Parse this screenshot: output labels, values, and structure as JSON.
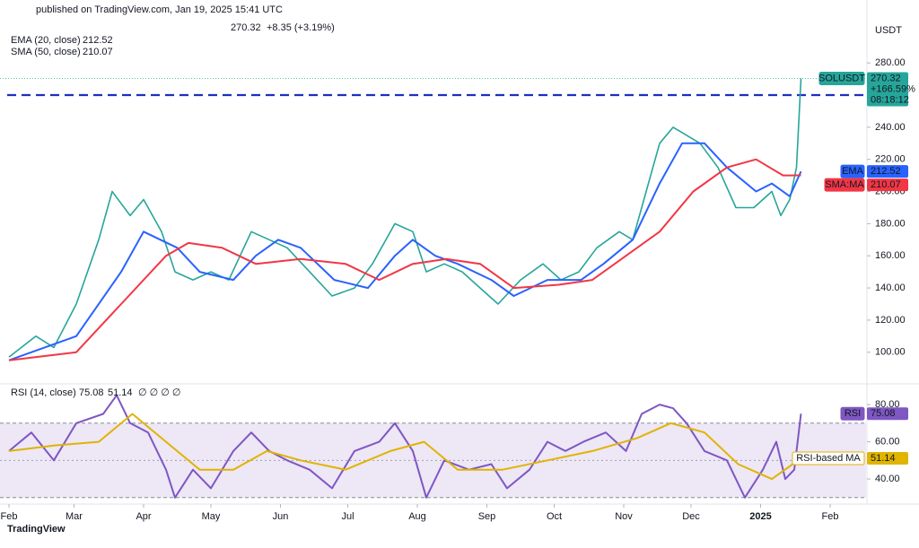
{
  "header": {
    "published": "published on TradingView.com, Jan 19, 2025 15:41 UTC",
    "change": "+8.35 (+3.19%)",
    "currency": "USDT",
    "pct": "+166.59%",
    "countdown": "08:18:12",
    "brand": "TradingView"
  },
  "chart_data": [
    {
      "type": "line",
      "indicators": [
        "EMA (20, close)",
        "SMA (50, close)"
      ],
      "xlim": [
        -4,
        382
      ],
      "xticks": [
        {
          "value": 0,
          "label": "Feb"
        },
        {
          "value": 29,
          "label": "Mar"
        },
        {
          "value": 60,
          "label": "Apr"
        },
        {
          "value": 90,
          "label": "May"
        },
        {
          "value": 121,
          "label": "Jun"
        },
        {
          "value": 151,
          "label": "Jul"
        },
        {
          "value": 182,
          "label": "Aug"
        },
        {
          "value": 213,
          "label": "Sep"
        },
        {
          "value": 243,
          "label": "Oct"
        },
        {
          "value": 274,
          "label": "Nov"
        },
        {
          "value": 304,
          "label": "Dec"
        },
        {
          "value": 335,
          "label": "2025"
        },
        {
          "value": 366,
          "label": "Feb"
        }
      ],
      "ylim": [
        82,
        308
      ],
      "yticks": [
        {
          "value": 100,
          "label": "100.00"
        },
        {
          "value": 120,
          "label": "120.00"
        },
        {
          "value": 140,
          "label": "140.00"
        },
        {
          "value": 160,
          "label": "160.00"
        },
        {
          "value": 180,
          "label": "180.00"
        },
        {
          "value": 200,
          "label": "200.00"
        },
        {
          "value": 220,
          "label": "220.00"
        },
        {
          "value": 240,
          "label": "240.00"
        },
        {
          "value": 260,
          "label": "260.00"
        },
        {
          "value": 280,
          "label": "280.00"
        }
      ],
      "level": {
        "value": 260,
        "label": "260.00",
        "color": "#1e2fbf"
      },
      "grid": false,
      "series": [
        {
          "name": "SOLUSDT",
          "color": "#26a69a",
          "x": [
            0,
            12,
            20,
            30,
            40,
            46,
            54,
            60,
            68,
            74,
            82,
            90,
            98,
            108,
            116,
            124,
            134,
            144,
            154,
            162,
            172,
            180,
            186,
            194,
            202,
            210,
            218,
            228,
            238,
            246,
            254,
            262,
            272,
            278,
            284,
            290,
            296,
            302,
            308,
            316,
            324,
            332,
            340,
            344,
            348,
            351,
            353
          ],
          "values": [
            97,
            110,
            103,
            130,
            170,
            200,
            185,
            195,
            175,
            150,
            145,
            150,
            145,
            175,
            170,
            165,
            150,
            135,
            140,
            155,
            180,
            175,
            150,
            155,
            150,
            140,
            130,
            145,
            155,
            145,
            150,
            165,
            175,
            170,
            200,
            230,
            240,
            235,
            230,
            215,
            190,
            190,
            200,
            185,
            195,
            215,
            270.32
          ]
        },
        {
          "name": "EMA",
          "color": "#2962ff",
          "x": [
            0,
            30,
            50,
            60,
            75,
            85,
            100,
            110,
            120,
            130,
            145,
            160,
            172,
            180,
            190,
            200,
            215,
            225,
            240,
            255,
            265,
            278,
            290,
            300,
            310,
            320,
            333,
            340,
            348,
            353
          ],
          "values": [
            95,
            110,
            150,
            175,
            165,
            150,
            145,
            160,
            170,
            165,
            145,
            140,
            160,
            170,
            160,
            155,
            145,
            135,
            145,
            145,
            155,
            170,
            205,
            230,
            230,
            215,
            200,
            205,
            197,
            212.52
          ]
        },
        {
          "name": "SMA:MA",
          "color": "#f23645",
          "x": [
            0,
            30,
            50,
            70,
            80,
            95,
            110,
            130,
            150,
            165,
            180,
            195,
            210,
            225,
            245,
            260,
            275,
            290,
            305,
            320,
            333,
            345,
            353
          ],
          "values": [
            95,
            100,
            130,
            160,
            168,
            165,
            155,
            158,
            155,
            145,
            155,
            158,
            155,
            140,
            142,
            145,
            160,
            175,
            200,
            215,
            220,
            210,
            210.07
          ]
        }
      ]
    },
    {
      "type": "line",
      "title": "RSI (14, close)",
      "extra": "∅ ∅ ∅ ∅",
      "xlim": [
        -4,
        382
      ],
      "ylim": [
        27.5,
        89.2
      ],
      "yticks": [
        {
          "value": 40,
          "label": "40.00"
        },
        {
          "value": 60,
          "label": "60.00"
        },
        {
          "value": 80,
          "label": "80.00"
        }
      ],
      "band": [
        30,
        70
      ],
      "midline": 50,
      "band_color": "#ede7f6",
      "series": [
        {
          "name": "RSI",
          "color": "#7e57c2",
          "x": [
            0,
            10,
            20,
            30,
            42,
            48,
            54,
            62,
            70,
            74,
            82,
            90,
            100,
            108,
            116,
            124,
            134,
            144,
            154,
            165,
            172,
            180,
            186,
            194,
            205,
            215,
            222,
            232,
            240,
            248,
            256,
            266,
            275,
            282,
            290,
            296,
            302,
            310,
            320,
            328,
            336,
            342,
            346,
            350,
            353
          ],
          "values": [
            55,
            65,
            50,
            70,
            75,
            85,
            70,
            65,
            45,
            30,
            45,
            35,
            55,
            65,
            55,
            50,
            45,
            35,
            55,
            60,
            70,
            55,
            30,
            50,
            45,
            48,
            35,
            45,
            60,
            55,
            60,
            65,
            55,
            75,
            80,
            78,
            70,
            55,
            50,
            30,
            45,
            60,
            40,
            45,
            75.08
          ]
        },
        {
          "name": "RSI-based MA",
          "color": "#e0b400",
          "x": [
            0,
            20,
            40,
            55,
            70,
            85,
            100,
            115,
            130,
            150,
            170,
            185,
            200,
            220,
            240,
            260,
            280,
            295,
            310,
            325,
            340,
            353
          ],
          "values": [
            55,
            58,
            60,
            75,
            60,
            45,
            45,
            55,
            50,
            45,
            55,
            60,
            45,
            45,
            50,
            55,
            62,
            70,
            65,
            48,
            40,
            51.14
          ]
        }
      ]
    }
  ]
}
